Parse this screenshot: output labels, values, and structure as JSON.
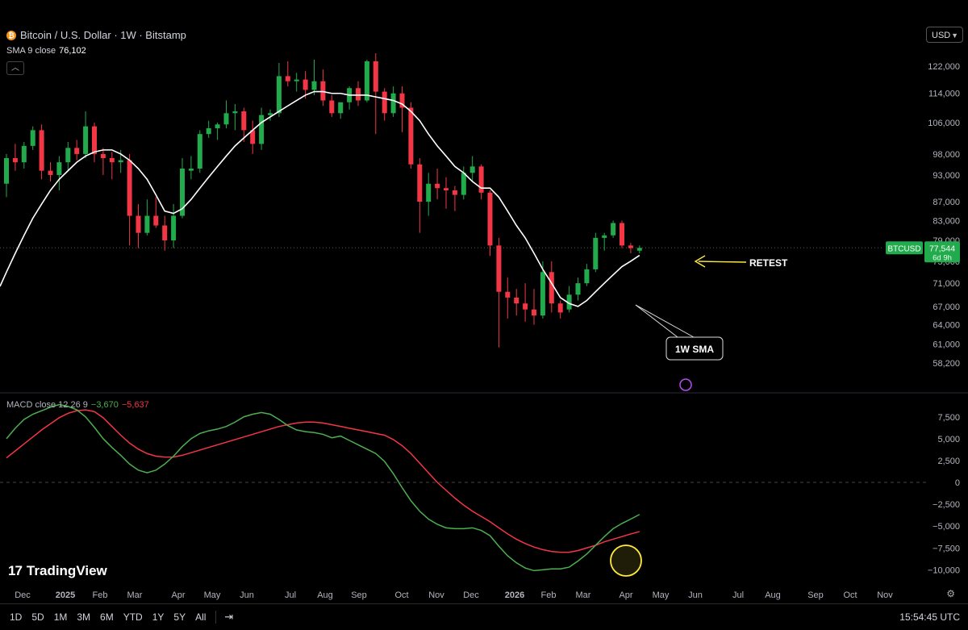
{
  "header": {
    "symbol_title": "Bitcoin / U.S. Dollar · 1W · Bitstamp",
    "sma_label": "SMA 9 close",
    "sma_value": "76,102",
    "currency": "USD"
  },
  "price_tag": {
    "symbol": "BTCUSD",
    "price": "77,544",
    "countdown": "6d 9h"
  },
  "annotations": {
    "retest": "RETEST",
    "sma_callout": "1W SMA"
  },
  "macd_legend": {
    "label": "MACD close 12 26 9",
    "macd_value": "−3,670",
    "signal_value": "−5,637"
  },
  "brand": "TradingView",
  "toolbar": {
    "ranges": [
      "1D",
      "5D",
      "1M",
      "3M",
      "6M",
      "YTD",
      "1Y",
      "5Y",
      "All"
    ],
    "clock": "15:54:45 UTC"
  },
  "colors": {
    "up": "#22ab4c",
    "down": "#f23645",
    "sma": "#ffffff",
    "macd": "#4caf50",
    "signal": "#f23645",
    "accent": "#ffeb3b"
  },
  "chart_data": [
    {
      "type": "candlestick",
      "title": "Bitcoin / U.S. Dollar · 1W · Bitstamp",
      "y_scale": "log",
      "ylim": [
        56800,
        126000
      ],
      "y_ticks": [
        58200,
        61000,
        64000,
        67000,
        71000,
        75000,
        79000,
        83000,
        87000,
        93000,
        98000,
        106000,
        114000,
        122000
      ],
      "x_labels": [
        "Dec",
        "2025",
        "Feb",
        "Mar",
        "Apr",
        "May",
        "Jun",
        "Jul",
        "Aug",
        "Sep",
        "Oct",
        "Nov",
        "Dec",
        "2026",
        "Feb",
        "Mar",
        "Apr",
        "May",
        "Jun",
        "Jul",
        "Aug",
        "Sep",
        "Oct",
        "Nov"
      ],
      "x_start": "2024-11-25",
      "interval": "1W",
      "ohlc": [
        [
          91000,
          98000,
          88000,
          97000
        ],
        [
          97000,
          100500,
          94000,
          96000
        ],
        [
          96000,
          101000,
          94500,
          100000
        ],
        [
          100000,
          105000,
          99000,
          104000
        ],
        [
          104000,
          105500,
          92000,
          94000
        ],
        [
          94000,
          96000,
          91500,
          93000
        ],
        [
          93000,
          97500,
          89500,
          96000
        ],
        [
          96000,
          101000,
          94000,
          99500
        ],
        [
          99500,
          101500,
          96500,
          98000
        ],
        [
          98000,
          109000,
          97000,
          105000
        ],
        [
          105000,
          106000,
          96000,
          98000
        ],
        [
          98000,
          99500,
          93000,
          97000
        ],
        [
          97000,
          98500,
          92000,
          96000
        ],
        [
          96000,
          99000,
          93500,
          96500
        ],
        [
          96500,
          98000,
          78000,
          84000
        ],
        [
          84000,
          86500,
          77500,
          80500
        ],
        [
          80500,
          87500,
          80000,
          84000
        ],
        [
          84000,
          88000,
          81500,
          82000
        ],
        [
          82000,
          84000,
          77000,
          79000
        ],
        [
          79000,
          86500,
          77500,
          84000
        ],
        [
          84000,
          97000,
          83500,
          94500
        ],
        [
          94000,
          97500,
          92000,
          94500
        ],
        [
          94500,
          104000,
          93500,
          103000
        ],
        [
          103000,
          106500,
          102000,
          104500
        ],
        [
          104500,
          106000,
          101500,
          105500
        ],
        [
          105500,
          112000,
          104500,
          108500
        ],
        [
          108500,
          111000,
          104000,
          109000
        ],
        [
          109000,
          110000,
          101000,
          104000
        ],
        [
          104000,
          106500,
          98000,
          100500
        ],
        [
          100500,
          110000,
          99000,
          108000
        ],
        [
          108000,
          109500,
          106500,
          108500
        ],
        [
          108500,
          123000,
          107500,
          119000
        ],
        [
          119000,
          123500,
          116000,
          117500
        ],
        [
          117500,
          120000,
          114500,
          118000
        ],
        [
          118000,
          120500,
          112500,
          115000
        ],
        [
          115000,
          124000,
          113500,
          117500
        ],
        [
          117500,
          121000,
          110500,
          112000
        ],
        [
          112000,
          113500,
          107500,
          108500
        ],
        [
          108500,
          111000,
          107000,
          111500
        ],
        [
          111500,
          116000,
          109500,
          115500
        ],
        [
          115500,
          117500,
          110500,
          112000
        ],
        [
          112000,
          124000,
          111500,
          123500
        ],
        [
          123500,
          126000,
          103000,
          114500
        ],
        [
          114500,
          115500,
          106500,
          108500
        ],
        [
          108500,
          116000,
          107500,
          114000
        ],
        [
          114000,
          116000,
          103500,
          110000
        ],
        [
          110000,
          111500,
          94500,
          95500
        ],
        [
          95500,
          97000,
          80500,
          87000
        ],
        [
          87000,
          93500,
          84000,
          91000
        ],
        [
          91000,
          94500,
          87500,
          90000
        ],
        [
          90000,
          92500,
          85500,
          89500
        ],
        [
          89500,
          90500,
          85000,
          88500
        ],
        [
          88500,
          95000,
          87500,
          93500
        ],
        [
          93500,
          97500,
          91500,
          95000
        ],
        [
          95000,
          95500,
          87500,
          89000
        ],
        [
          89000,
          89500,
          76000,
          78000
        ],
        [
          78000,
          79500,
          60500,
          69500
        ],
        [
          69500,
          72000,
          65000,
          68500
        ],
        [
          68500,
          70000,
          65500,
          67500
        ],
        [
          67500,
          71000,
          64500,
          66500
        ],
        [
          66500,
          70000,
          64000,
          65500
        ],
        [
          65500,
          75000,
          65000,
          73000
        ],
        [
          73000,
          75000,
          66000,
          67500
        ],
        [
          67500,
          68000,
          65000,
          66000
        ],
        [
          66500,
          70500,
          66000,
          69000
        ],
        [
          69000,
          72000,
          68000,
          71000
        ],
        [
          71000,
          74500,
          70500,
          73500
        ],
        [
          73500,
          80500,
          73000,
          79500
        ],
        [
          79500,
          80500,
          77000,
          80000
        ],
        [
          80000,
          83000,
          79500,
          82500
        ],
        [
          82500,
          83000,
          77500,
          78000
        ],
        [
          78000,
          78500,
          76500,
          77500
        ],
        [
          77000,
          78000,
          76500,
          77544
        ]
      ],
      "sma": {
        "name": "SMA 9 close",
        "values": [
          73000,
          76500,
          80000,
          83500,
          86500,
          89500,
          92000,
          94000,
          96000,
          97500,
          98500,
          99000,
          99000,
          98000,
          96500,
          94500,
          92000,
          88500,
          85000,
          84500,
          85500,
          87500,
          90000,
          92500,
          95000,
          97500,
          100000,
          102000,
          104000,
          106000,
          107500,
          109000,
          110500,
          112000,
          113500,
          114500,
          114500,
          114000,
          114000,
          113500,
          113500,
          113500,
          113000,
          112500,
          112000,
          111000,
          109000,
          106500,
          103000,
          100000,
          97500,
          95000,
          93500,
          91500,
          90000,
          90000,
          88000,
          85000,
          82000,
          79500,
          76500,
          73500,
          71000,
          68500,
          67500,
          67000,
          68000,
          69500,
          71000,
          72500,
          74000,
          75000,
          76102
        ]
      }
    },
    {
      "type": "line",
      "title": "MACD close 12 26 9",
      "ylim": [
        -10800,
        8400
      ],
      "y_ticks": [
        7500,
        5000,
        2500,
        0,
        -2500,
        -5000,
        -7500,
        -10000
      ],
      "series": [
        {
          "name": "MACD",
          "values": [
            5000,
            6200,
            7200,
            7800,
            8200,
            8600,
            8900,
            8700,
            8300,
            7500,
            6300,
            5000,
            4000,
            3100,
            2100,
            1400,
            1100,
            1400,
            2100,
            3000,
            4100,
            5000,
            5600,
            5900,
            6100,
            6400,
            6900,
            7500,
            7800,
            8000,
            7800,
            7200,
            6500,
            6000,
            5800,
            5700,
            5500,
            5100,
            5300,
            4800,
            4300,
            3800,
            3300,
            2400,
            1000,
            -600,
            -2100,
            -3300,
            -4200,
            -4800,
            -5200,
            -5300,
            -5300,
            -5200,
            -5500,
            -6100,
            -7300,
            -8400,
            -9200,
            -9800,
            -10100,
            -10000,
            -9900,
            -9900,
            -9700,
            -9000,
            -8200,
            -7200,
            -6200,
            -5300,
            -4700,
            -4200,
            -3670
          ]
        },
        {
          "name": "Signal",
          "values": [
            2800,
            3600,
            4400,
            5200,
            6000,
            6700,
            7400,
            7900,
            8200,
            8300,
            8100,
            7400,
            6400,
            5400,
            4500,
            3800,
            3300,
            3000,
            2900,
            2900,
            3100,
            3400,
            3700,
            4000,
            4300,
            4600,
            4900,
            5200,
            5500,
            5800,
            6100,
            6400,
            6600,
            6800,
            6900,
            6900,
            6800,
            6600,
            6400,
            6200,
            6000,
            5800,
            5600,
            5400,
            4900,
            4200,
            3300,
            2200,
            1100,
            0,
            -900,
            -1800,
            -2600,
            -3300,
            -3900,
            -4500,
            -5200,
            -5900,
            -6500,
            -7000,
            -7400,
            -7700,
            -7900,
            -8000,
            -8000,
            -7800,
            -7500,
            -7200,
            -6800,
            -6500,
            -6200,
            -5900,
            -5637
          ]
        }
      ]
    }
  ]
}
